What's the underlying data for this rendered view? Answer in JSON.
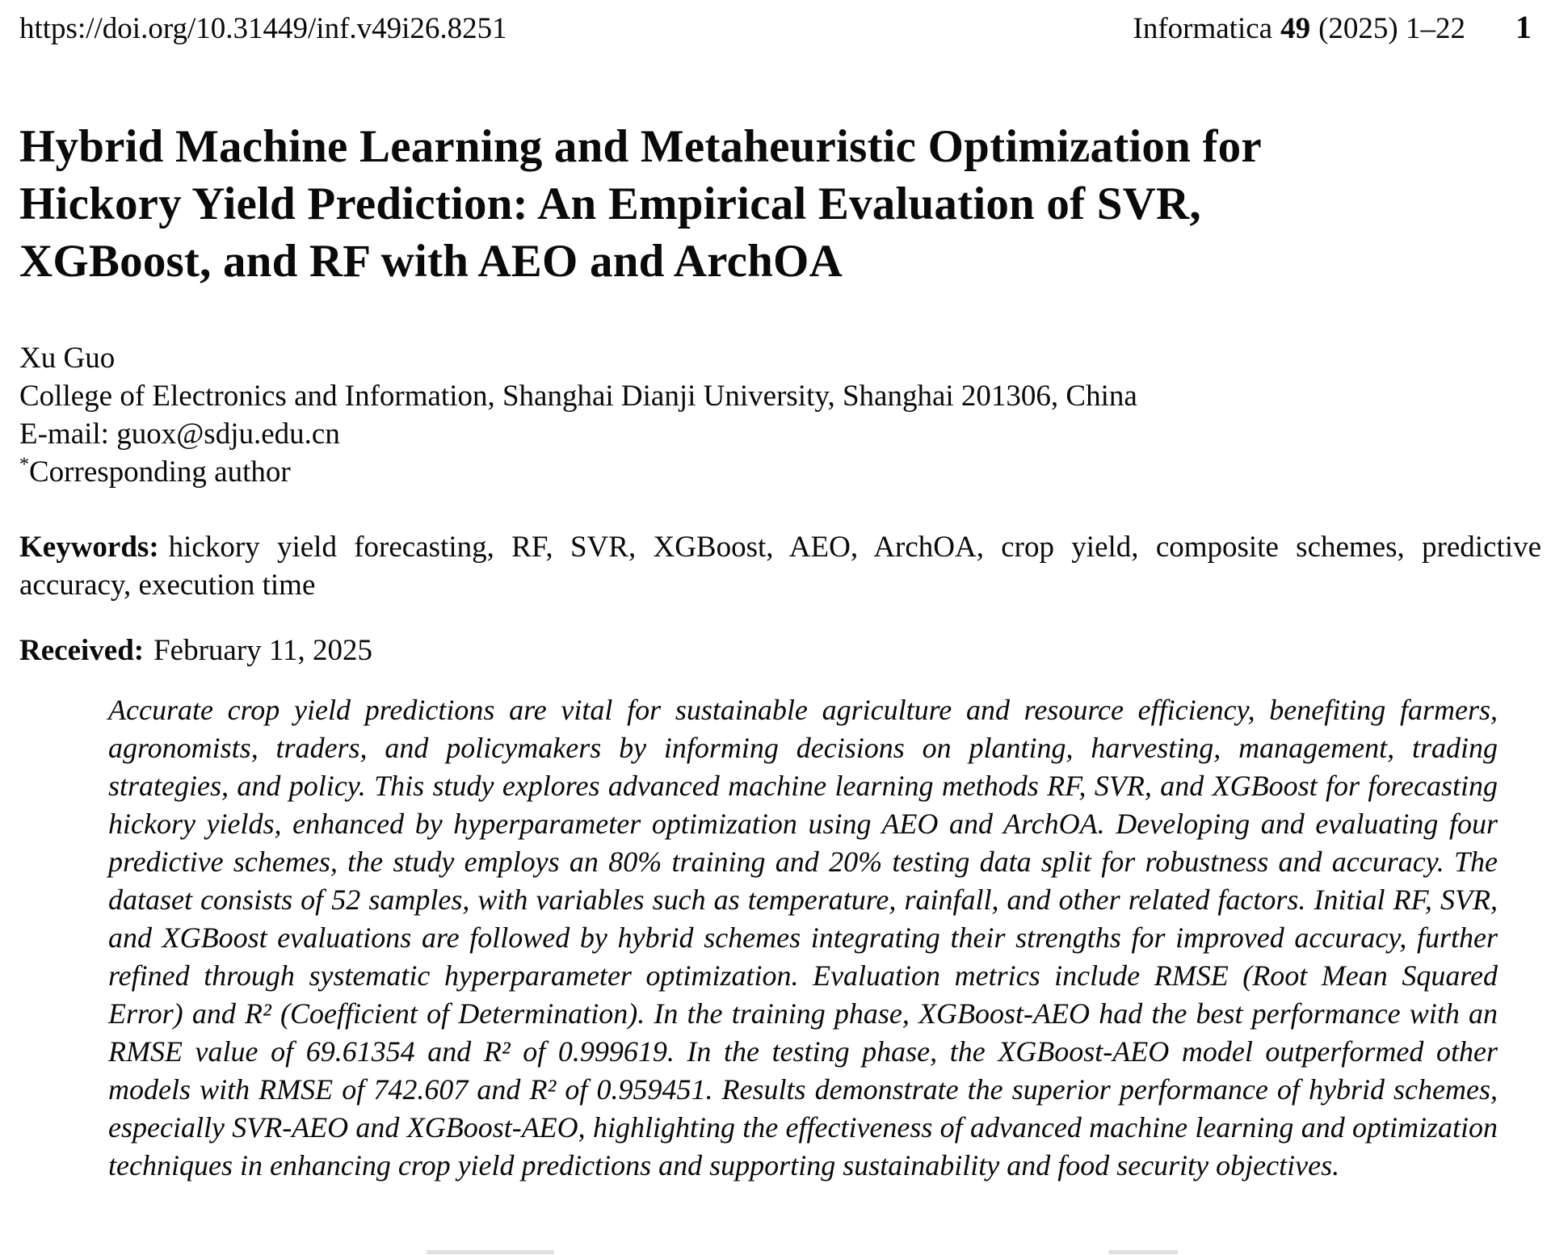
{
  "header": {
    "doi": "https://doi.org/10.31449/inf.v49i26.8251",
    "journal": {
      "name": "Informatica",
      "volume": "49",
      "issue_pages": "(2025) 1–22",
      "page_number": "1"
    }
  },
  "title": {
    "lines": [
      "Hybrid Machine Learning and Metaheuristic Optimization for",
      "Hickory Yield Prediction: An Empirical Evaluation of SVR,",
      "XGBoost, and RF with AEO and ArchOA"
    ]
  },
  "author": {
    "name": "Xu Guo",
    "affiliation": "College of Electronics and Information, Shanghai Dianji University, Shanghai 201306, China",
    "email_label": "E-mail:",
    "email": "guox@sdju.edu.cn",
    "note_symbol": "*",
    "note": "Corresponding author"
  },
  "keywords": {
    "label": "Keywords:",
    "text": "hickory yield forecasting, RF, SVR, XGBoost, AEO, ArchOA, crop yield, composite schemes, predictive accuracy, execution time"
  },
  "received": {
    "label": "Received:",
    "date": "February 11, 2025"
  },
  "abstract": {
    "text": "Accurate crop yield predictions are vital for sustainable agriculture and resource efficiency, benefiting farmers, agronomists, traders, and policymakers by informing decisions on planting, harvesting, management, trading strategies, and policy. This study explores advanced machine learning methods RF, SVR, and XGBoost for forecasting hickory yields, enhanced by hyperparameter optimization using AEO and ArchOA. Developing and evaluating four predictive schemes, the study employs an 80% training and 20% testing data split for robustness and accuracy. The dataset consists of 52 samples, with variables such as temperature, rainfall, and other related factors. Initial RF, SVR, and XGBoost evaluations are followed by hybrid schemes integrating their strengths for improved accuracy, further refined through systematic hyperparameter optimization. Evaluation metrics include RMSE (Root Mean Squared Error) and R² (Coefficient of Determination). In the training phase, XGBoost-AEO had the best performance with an RMSE value of 69.61354 and R² of 0.999619. In the testing phase, the XGBoost-AEO model outperformed other models with RMSE of 742.607 and R² of 0.959451. Results demonstrate the superior performance of hybrid schemes, especially SVR-AEO and XGBoost-AEO, highlighting the effectiveness of advanced machine learning and optimization techniques in enhancing crop yield predictions and supporting sustainability and food security objectives."
  }
}
